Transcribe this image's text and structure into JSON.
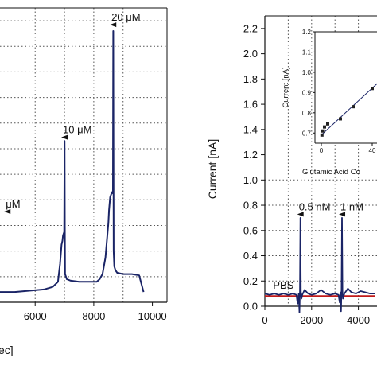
{
  "colors": {
    "trace": "#1a2466",
    "baseline": "#c01a1a",
    "grid": "#555555",
    "axis": "#111111"
  },
  "chart_data": [
    {
      "type": "line",
      "xlabel": "ec]",
      "ylabel": "",
      "xlim": [
        4800,
        10500
      ],
      "ylim": [
        0.0,
        2.3
      ],
      "x_ticks": [
        6000,
        8000,
        10000
      ],
      "x_tick_labels": [
        "6000",
        "8000",
        "10000"
      ],
      "grid": true,
      "series": [
        {
          "x": [
            4800,
            5300,
            5800,
            6300,
            6600,
            6780,
            6850,
            6900,
            6930,
            6950,
            6990,
            7005,
            7012,
            7020,
            7080,
            7200,
            7500,
            7900,
            8100,
            8200,
            8300,
            8400,
            8500,
            8520,
            8560,
            8620,
            8655,
            8665,
            8680,
            8700,
            8740,
            8800,
            9000,
            9300,
            9550,
            9700
          ],
          "y": [
            0.08,
            0.08,
            0.09,
            0.1,
            0.12,
            0.16,
            0.3,
            0.45,
            0.48,
            0.52,
            0.55,
            1.26,
            0.6,
            0.22,
            0.18,
            0.17,
            0.16,
            0.16,
            0.16,
            0.18,
            0.22,
            0.35,
            0.62,
            0.72,
            0.82,
            0.86,
            0.85,
            2.12,
            0.4,
            0.28,
            0.25,
            0.23,
            0.22,
            0.22,
            0.21,
            0.08
          ]
        }
      ],
      "annotations": [
        {
          "text": "μM",
          "x": 5050,
          "y": 0.74
        },
        {
          "text": "10 μM",
          "x": 7000,
          "y": 1.32
        },
        {
          "text": "20 μM",
          "x": 8660,
          "y": 2.2
        }
      ]
    },
    {
      "type": "line",
      "xlabel": "",
      "ylabel": "Current [nA]",
      "xlim": [
        0,
        5000
      ],
      "ylim": [
        0.0,
        2.3
      ],
      "x_ticks": [
        0,
        2000,
        4000
      ],
      "x_tick_labels": [
        "0",
        "2000",
        "4000"
      ],
      "y_ticks": [
        0.0,
        0.2,
        0.4,
        0.6,
        0.8,
        1.0,
        1.2,
        1.4,
        1.6,
        1.8,
        2.0,
        2.2
      ],
      "y_tick_labels": [
        "0.0",
        "0.2",
        "0.4",
        "0.6",
        "0.8",
        "1.0",
        "1.2",
        "1.4",
        "1.6",
        "1.8",
        "2.0",
        "2.2"
      ],
      "grid": true,
      "series": [
        {
          "x": [
            0,
            200,
            400,
            600,
            800,
            1000,
            1200,
            1350,
            1400,
            1450,
            1480,
            1500,
            1520,
            1540,
            1560,
            1580,
            1600,
            1700,
            1850,
            2000,
            2200,
            2400,
            2600,
            2800,
            3000,
            3150,
            3200,
            3230,
            3260,
            3280,
            3300,
            3320,
            3340,
            3400,
            3550,
            3700,
            3900,
            4100,
            4300,
            4500,
            4700
          ],
          "y": [
            0.1,
            0.09,
            0.1,
            0.09,
            0.1,
            0.09,
            0.1,
            0.09,
            0.02,
            0.1,
            -0.05,
            0.12,
            0.7,
            0.12,
            0.06,
            0.07,
            0.09,
            0.13,
            0.1,
            0.09,
            0.1,
            0.13,
            0.1,
            0.09,
            0.1,
            0.09,
            0.03,
            0.11,
            -0.04,
            0.12,
            0.7,
            0.12,
            0.06,
            0.1,
            0.14,
            0.11,
            0.1,
            0.12,
            0.11,
            0.1,
            0.1
          ]
        },
        {
          "x": [
            0,
            4700
          ],
          "y": [
            0.08,
            0.08
          ]
        }
      ],
      "annotations": [
        {
          "text": "PBS",
          "x": 350,
          "y": 0.14
        },
        {
          "text": "0.5 nM",
          "x": 1520,
          "y": 0.76
        },
        {
          "text": "1 nM",
          "x": 3300,
          "y": 0.76
        }
      ]
    },
    {
      "type": "scatter",
      "xlabel": "Glutamic Acid Co",
      "ylabel": "Current [nA]",
      "xlim": [
        -5,
        45
      ],
      "ylim": [
        0.65,
        1.2
      ],
      "x_ticks": [
        0,
        40
      ],
      "x_tick_labels": [
        "0",
        "40"
      ],
      "y_ticks": [
        0.7,
        0.8,
        0.9,
        1.0,
        1.1,
        1.2
      ],
      "y_tick_labels": [
        "0.7",
        "0.8",
        "0.9",
        "1.0",
        "1.1",
        "1.2"
      ],
      "series": [
        {
          "x": [
            0.5,
            1,
            2.5,
            5,
            15,
            25,
            40
          ],
          "y": [
            0.69,
            0.71,
            0.73,
            0.745,
            0.77,
            0.83,
            0.92
          ]
        },
        {
          "x": [
            0,
            44
          ],
          "y": [
            0.69,
            0.945
          ]
        }
      ]
    }
  ]
}
